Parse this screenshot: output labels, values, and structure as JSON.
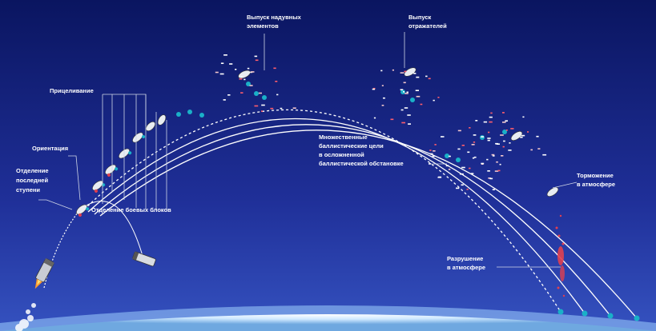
{
  "labels": {
    "stage_separation": [
      "Отделение",
      "последней",
      "ступени"
    ],
    "orientation": [
      "Ориентация"
    ],
    "aiming": [
      "Прицеливание"
    ],
    "warhead_separation": [
      "Отделение боевых блоков"
    ],
    "inflatable_release": [
      "Выпуск надувных",
      "элементов"
    ],
    "reflector_release": [
      "Выпуск",
      "отражателей"
    ],
    "multiple_targets": [
      "Множественные",
      "баллистические цели",
      "в осложненной",
      "баллистической обстановке"
    ],
    "braking": [
      "Торможение",
      "в атмосфере"
    ],
    "destruction": [
      "Разрушение",
      "в атмосфере"
    ]
  },
  "colors": {
    "space_top": "#0a1560",
    "space_bottom": "#2a3fb0",
    "earth_glow": "#cfe9ff",
    "trajectory": "#ffffff",
    "warhead_marker": "#1ab0c8",
    "debris_red": "#e04050"
  },
  "icons": [
    "rocket-icon",
    "spent-stage-icon",
    "warhead-icon",
    "decoy-icon"
  ]
}
